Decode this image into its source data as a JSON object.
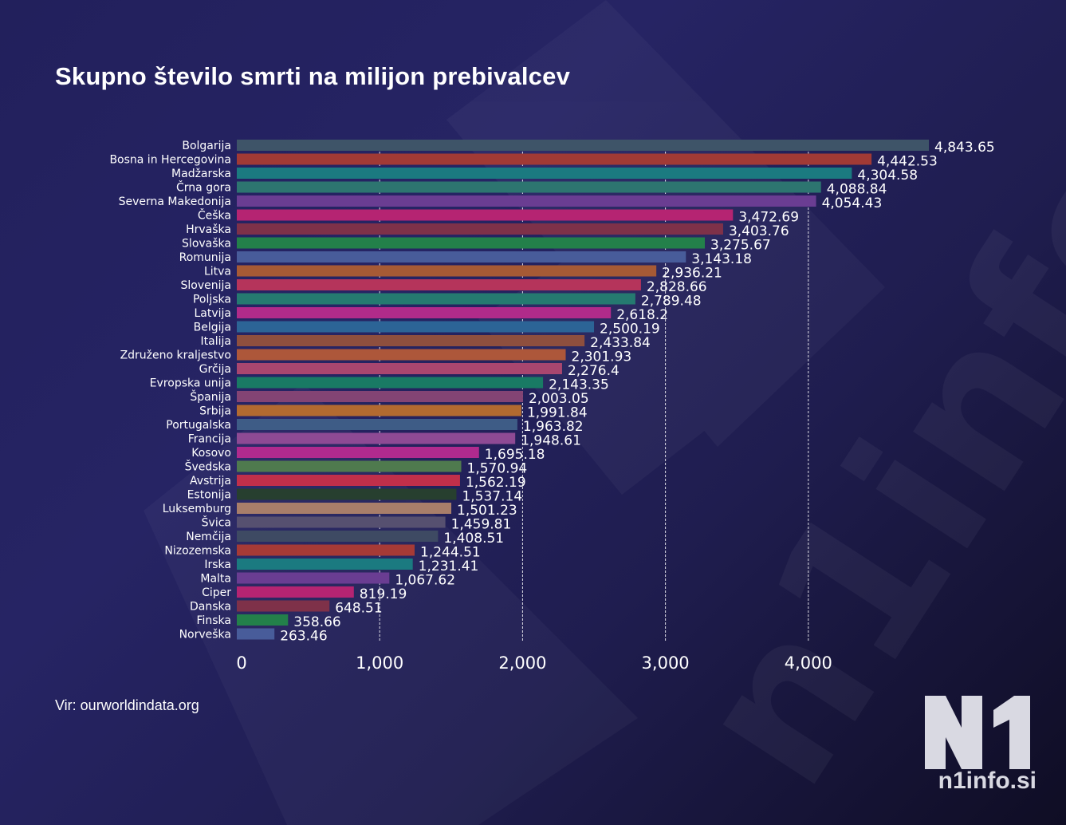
{
  "title": "Skupno število smrti na milijon prebivalcev",
  "source": "Vir: ourworldindata.org",
  "logo": {
    "mark": "N1",
    "site": "n1info.si"
  },
  "watermark_text": "n1info.si",
  "colors": {
    "background": "#24225e",
    "grid": "#ffffff",
    "text": "#ffffff"
  },
  "chart_data": {
    "type": "bar",
    "orientation": "horizontal",
    "title": "Skupno število smrti na milijon prebivalcev",
    "xlabel": "",
    "ylabel": "",
    "xlim": [
      0,
      4843.65
    ],
    "xticks": [
      0,
      1000,
      2000,
      3000,
      4000
    ],
    "xtick_labels": [
      "0",
      "1,000",
      "2,000",
      "3,000",
      "4,000"
    ],
    "grid": "vertical dashed",
    "categories": [
      "Bolgarija",
      "Bosna in Hercegovina",
      "Madžarska",
      "Črna gora",
      "Severna Makedonija",
      "Češka",
      "Hrvaška",
      "Slovaška",
      "Romunija",
      "Litva",
      "Slovenija",
      "Poljska",
      "Latvija",
      "Belgija",
      "Italija",
      "Združeno kraljestvo",
      "Grčija",
      "Evropska unija",
      "Španija",
      "Srbija",
      "Portugalska",
      "Francija",
      "Kosovo",
      "Švedska",
      "Avstrija",
      "Estonija",
      "Luksemburg",
      "Švica",
      "Nemčija",
      "Nizozemska",
      "Irska",
      "Malta",
      "Ciper",
      "Danska",
      "Finska",
      "Norveška"
    ],
    "values": [
      4843.65,
      4442.53,
      4304.58,
      4088.84,
      4054.43,
      3472.69,
      3403.76,
      3275.67,
      3143.18,
      2936.21,
      2828.66,
      2789.48,
      2618.2,
      2500.19,
      2433.84,
      2301.93,
      2276.4,
      2143.35,
      2003.05,
      1991.84,
      1963.82,
      1948.61,
      1695.18,
      1570.94,
      1562.19,
      1537.14,
      1501.23,
      1459.81,
      1408.51,
      1244.51,
      1231.41,
      1067.62,
      819.19,
      648.51,
      358.66,
      263.46
    ],
    "value_labels": [
      "4,843.65",
      "4,442.53",
      "4,304.58",
      "4,088.84",
      "4,054.43",
      "3,472.69",
      "3,403.76",
      "3,275.67",
      "3,143.18",
      "2,936.21",
      "2,828.66",
      "2,789.48",
      "2,618.2",
      "2,500.19",
      "2,433.84",
      "2,301.93",
      "2,276.4",
      "2,143.35",
      "2,003.05",
      "1,991.84",
      "1,963.82",
      "1,948.61",
      "1,695.18",
      "1,570.94",
      "1,562.19",
      "1,537.14",
      "1,501.23",
      "1,459.81",
      "1,408.51",
      "1,244.51",
      "1,231.41",
      "1,067.62",
      "819.19",
      "648.51",
      "358.66",
      "263.46"
    ],
    "bar_colors": [
      "#3e5468",
      "#a13a35",
      "#1b7a80",
      "#2d7570",
      "#6a3d92",
      "#b52472",
      "#7e3149",
      "#23804a",
      "#485c9a",
      "#a65a35",
      "#b5345b",
      "#257a70",
      "#b02b8a",
      "#2c6496",
      "#8e4f3e",
      "#ad573a",
      "#a9466f",
      "#197a64",
      "#834474",
      "#b26a30",
      "#3e5c86",
      "#8e4a94",
      "#b02a8e",
      "#4f7a4e",
      "#c02f4a",
      "#273f2f",
      "#a87e6a",
      "#565070",
      "#3e4a63",
      "#a63a36",
      "#1b7a80",
      "#6a3d92",
      "#b52472",
      "#7e3149",
      "#23804a",
      "#485c9a"
    ]
  }
}
